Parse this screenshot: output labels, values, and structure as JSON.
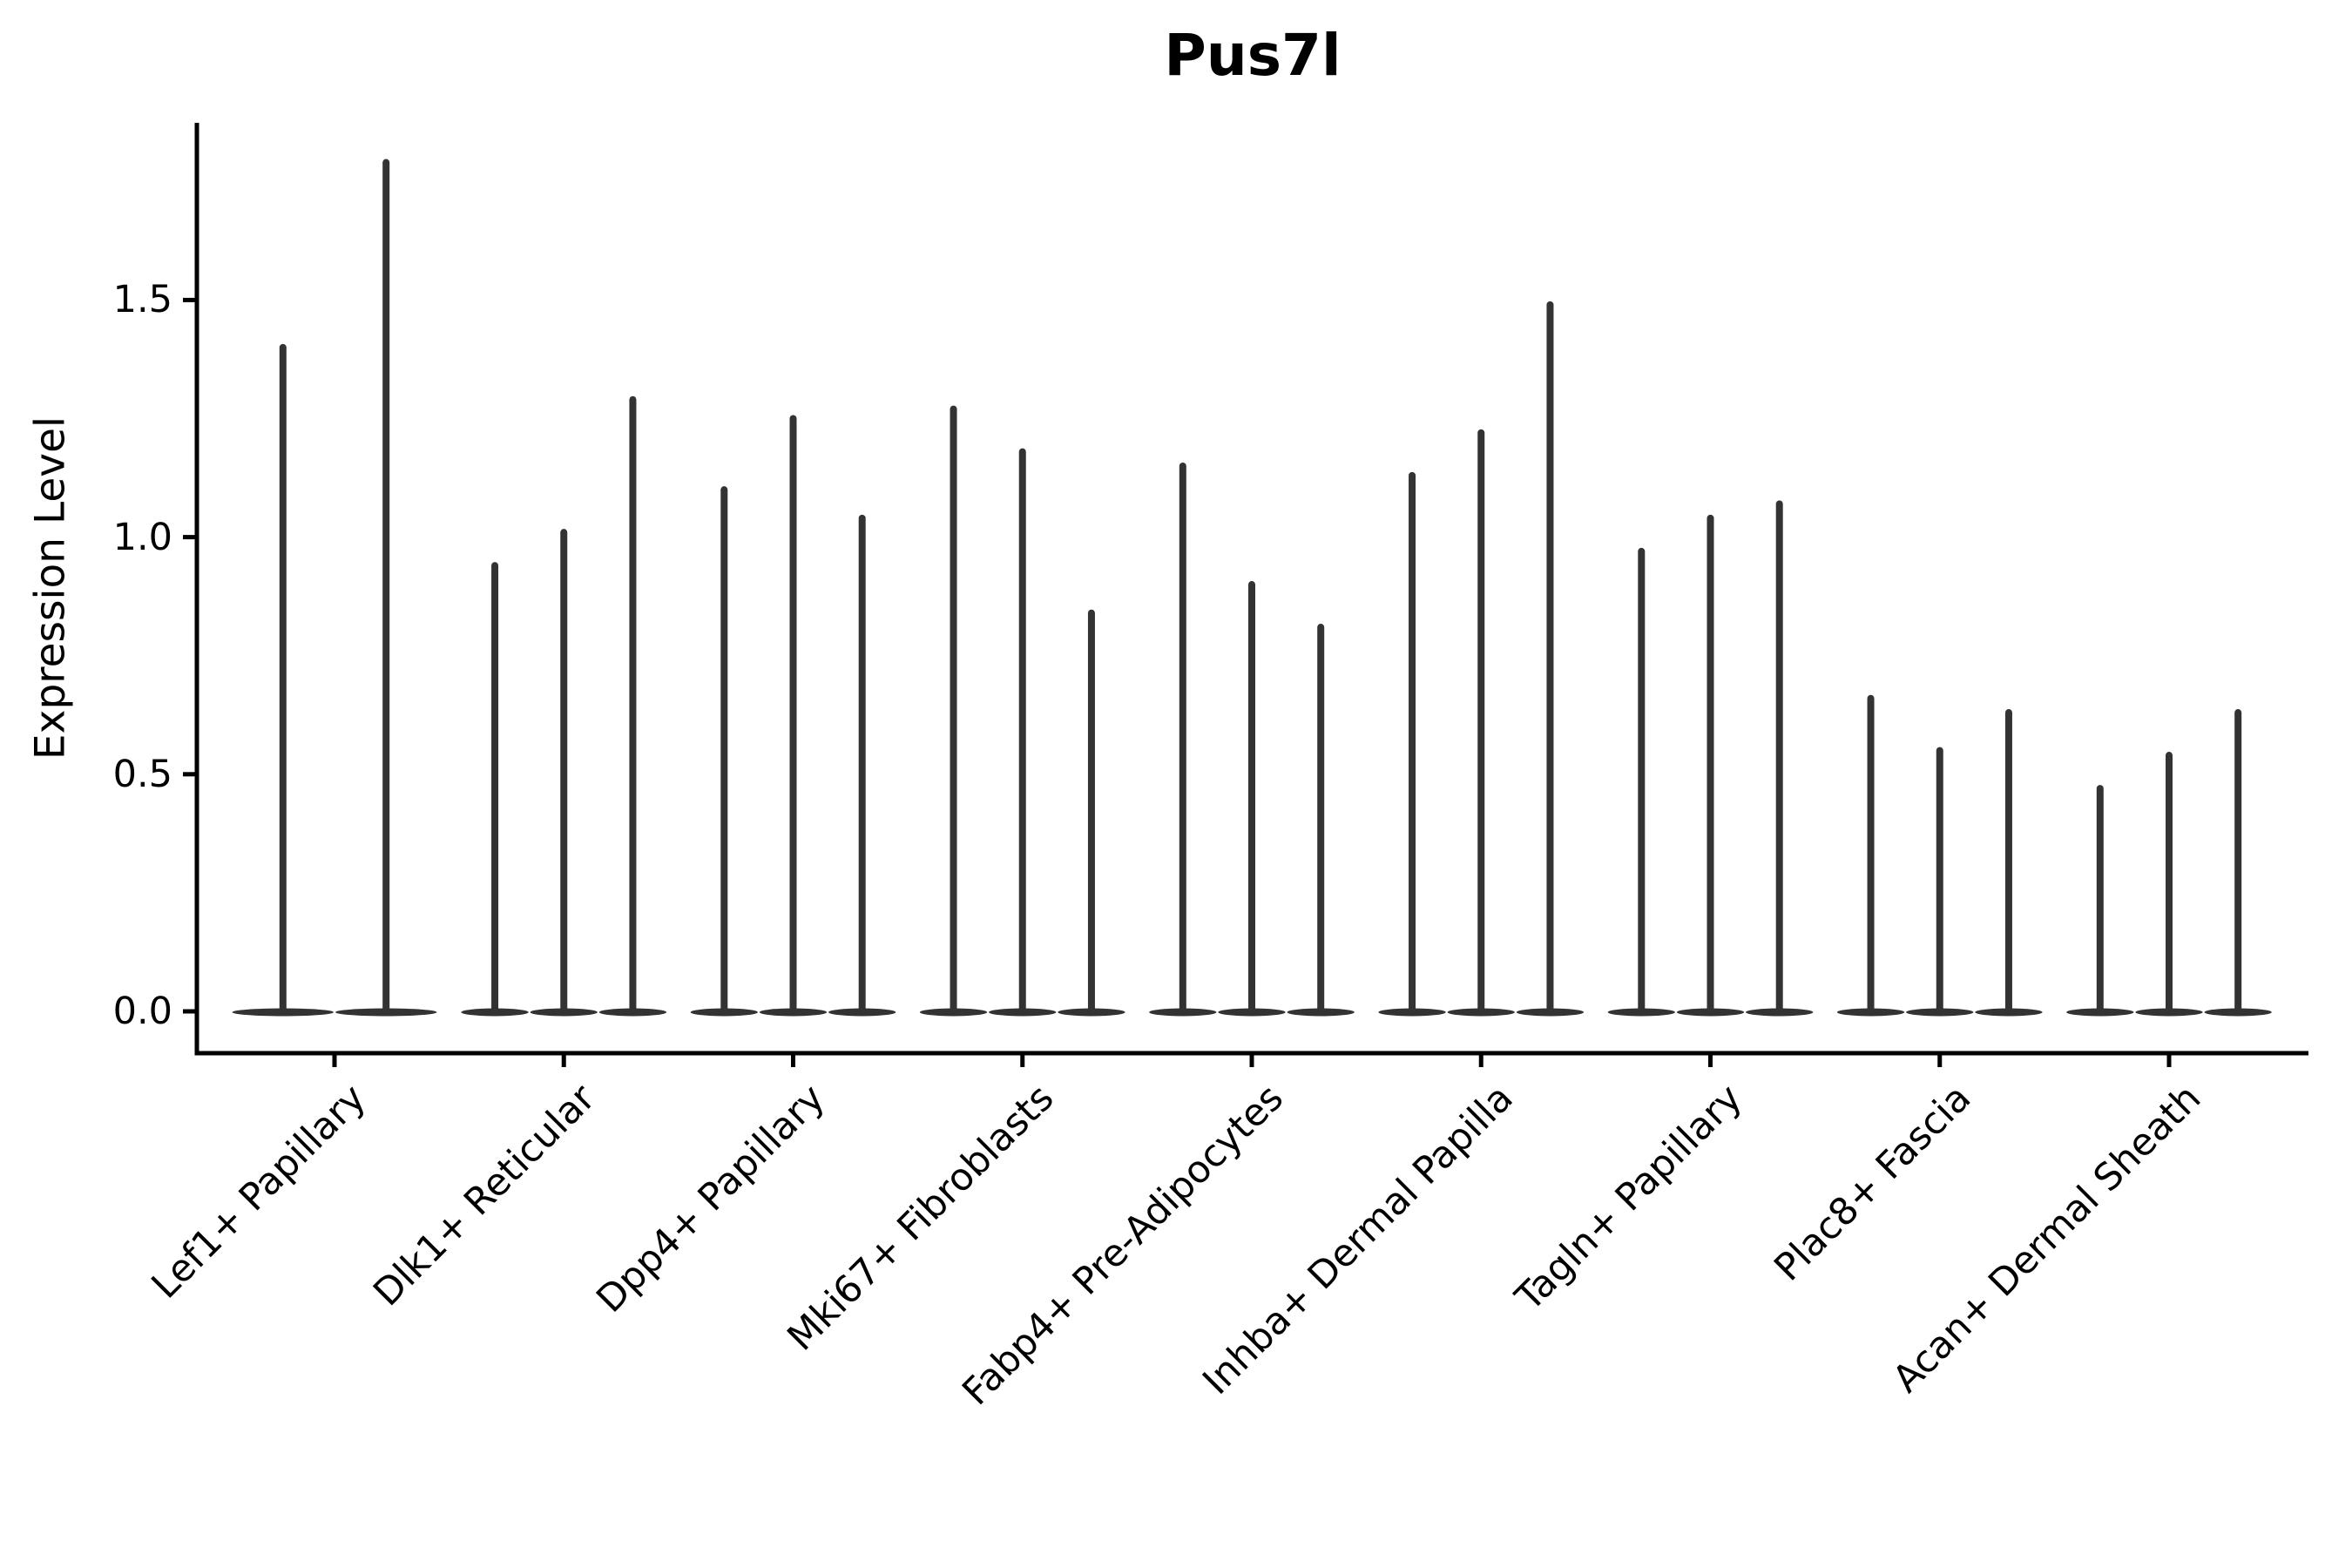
{
  "chart_data": {
    "type": "violin",
    "title": "Pus7l",
    "ylabel": "Expression Level",
    "xlabel": "",
    "y_ticks": [
      {
        "label": "0.0",
        "value": 0.0
      },
      {
        "label": "0.5",
        "value": 0.5
      },
      {
        "label": "1.0",
        "value": 1.0
      },
      {
        "label": "1.5",
        "value": 1.5
      }
    ],
    "ylim": [
      -0.09,
      1.87
    ],
    "grid": false,
    "legend": "none",
    "violin_shape": "distribution massed at 0: wide flat base at 0 with a single thin spike rising to each violin's maximum",
    "groups": [
      {
        "label": "Lef1+ Papillary",
        "violin_maxima": [
          1.4,
          1.79
        ]
      },
      {
        "label": "Dlk1+ Reticular",
        "violin_maxima": [
          0.94,
          1.01,
          1.29
        ]
      },
      {
        "label": "Dpp4+ Papillary",
        "violin_maxima": [
          1.1,
          1.25,
          1.04
        ]
      },
      {
        "label": "Mki67+ Fibroblasts",
        "violin_maxima": [
          1.27,
          1.18,
          0.84
        ]
      },
      {
        "label": "Fabp4+ Pre-Adipocytes",
        "violin_maxima": [
          1.15,
          0.9,
          0.81
        ]
      },
      {
        "label": "Inhba+ Dermal Papilla",
        "violin_maxima": [
          1.13,
          1.22,
          1.49
        ]
      },
      {
        "label": "Tagln+ Papillary",
        "violin_maxima": [
          0.97,
          1.04,
          1.07
        ]
      },
      {
        "label": "Plac8+ Fascia",
        "violin_maxima": [
          0.66,
          0.55,
          0.63
        ]
      },
      {
        "label": "Acan+ Dermal Sheath",
        "violin_maxima": [
          0.47,
          0.54,
          0.63
        ]
      }
    ],
    "colors": {
      "violin": "#333333",
      "axis": "#000000",
      "text": "#000000",
      "background": "#ffffff"
    }
  }
}
